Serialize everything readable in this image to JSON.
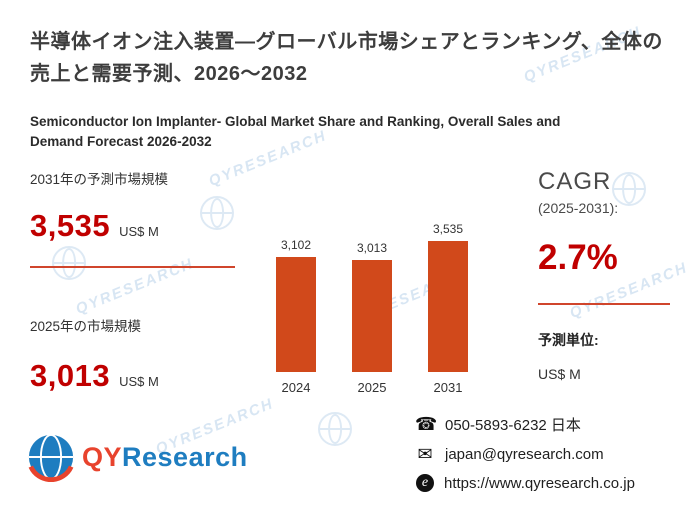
{
  "header": {
    "title_jp": "半導体イオン注入装置—グローバル市場シェアとランキング、全体の売上と需要予測、2026～2032",
    "title_en": "Semiconductor Ion Implanter- Global Market Share and Ranking, Overall Sales and Demand Forecast 2026-2032"
  },
  "stats": {
    "forecast_label": "2031年の予測市場規模",
    "forecast_value": "3,535",
    "forecast_unit": "US$ M",
    "current_label": "2025年の市場規模",
    "current_value": "3,013",
    "current_unit": "US$ M"
  },
  "chart_data": {
    "type": "bar",
    "categories": [
      "2024",
      "2025",
      "2031"
    ],
    "values": [
      3102,
      3013,
      3535
    ],
    "value_labels": [
      "3,102",
      "3,013",
      "3,535"
    ],
    "title": "",
    "xlabel": "",
    "ylabel": "",
    "unit": "US$ M",
    "bar_color": "#d1491b",
    "grid": false,
    "legend": false
  },
  "cagr": {
    "label": "CAGR",
    "period": "(2025-2031):",
    "value": "2.7%"
  },
  "unit_section": {
    "label": "予測単位:",
    "value": "US$ M"
  },
  "logo": {
    "part1": "QY",
    "part2": "Research"
  },
  "contact": {
    "phone": "050-5893-6232 日本",
    "email": "japan@qyresearch.com",
    "website": "https://www.qyresearch.co.jp"
  },
  "icons": {
    "phone_glyph": "☎",
    "email_glyph": "✉",
    "web_glyph": "e"
  },
  "watermark": {
    "text": "QYRESEARCH"
  },
  "colors": {
    "accent_red": "#c00000",
    "bar_orange": "#d1491b",
    "logo_blue": "#1e7dc0",
    "logo_red": "#e8432d"
  }
}
